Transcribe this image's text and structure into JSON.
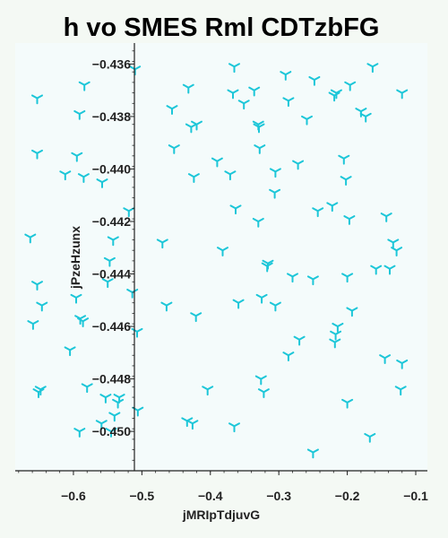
{
  "chart_data": {
    "type": "scatter",
    "title": "h vo SMES Rml CDTzbFG",
    "xlabel": "jMRIpTdjuvG",
    "ylabel": "jPzeHzunx",
    "xlim": [
      -0.685,
      -0.083
    ],
    "ylim": [
      -0.4515,
      -0.4352
    ],
    "x_ticks": [
      -0.6,
      -0.5,
      -0.4,
      -0.3,
      -0.2,
      -0.1
    ],
    "x_tick_labels": [
      "−0.6",
      "−0.5",
      "−0.4",
      "−0.3",
      "−0.2",
      "−0.1"
    ],
    "y_ticks": [
      -0.436,
      -0.438,
      -0.44,
      -0.442,
      -0.444,
      -0.446,
      -0.448,
      -0.45
    ],
    "y_tick_labels": [
      "−0.436",
      "−0.438",
      "−0.440",
      "−0.442",
      "−0.444",
      "−0.446",
      "−0.448",
      "−0.450"
    ],
    "grid": false,
    "marker": "tri",
    "colors": {
      "background": "#f4f9f4",
      "plot_background": "#f4fbfb",
      "marker": "#1cc6d8",
      "axis": "#222222"
    },
    "series": [
      {
        "x": [
          -0.51,
          -0.365,
          -0.163,
          -0.29,
          -0.248,
          -0.653,
          -0.584,
          -0.432,
          -0.367,
          -0.336,
          -0.196,
          -0.216,
          -0.219,
          -0.12,
          -0.591,
          -0.456,
          -0.351,
          -0.286,
          -0.18,
          -0.259,
          -0.42,
          -0.173,
          -0.428,
          -0.33,
          -0.329,
          -0.453,
          -0.328,
          -0.39,
          -0.653,
          -0.595,
          -0.205,
          -0.272,
          -0.612,
          -0.585,
          -0.424,
          -0.371,
          -0.305,
          -0.558,
          -0.202,
          -0.306,
          -0.519,
          -0.363,
          -0.243,
          -0.222,
          -0.143,
          -0.197,
          -0.33,
          -0.663,
          -0.542,
          -0.133,
          -0.47,
          -0.382,
          -0.128,
          -0.547,
          -0.316,
          -0.317,
          -0.158,
          -0.138,
          -0.28,
          -0.25,
          -0.2,
          -0.653,
          -0.55,
          -0.596,
          -0.514,
          -0.325,
          -0.305,
          -0.646,
          -0.464,
          -0.59,
          -0.421,
          -0.359,
          -0.193,
          -0.659,
          -0.586,
          -0.214,
          -0.507,
          -0.27,
          -0.217,
          -0.218,
          -0.605,
          -0.286,
          -0.145,
          -0.12,
          -0.58,
          -0.326,
          -0.404,
          -0.648,
          -0.651,
          -0.553,
          -0.322,
          -0.533,
          -0.535,
          -0.2,
          -0.122,
          -0.54,
          -0.506,
          -0.434,
          -0.426,
          -0.559,
          -0.365,
          -0.591,
          -0.545,
          -0.167,
          -0.25
        ],
        "y": [
          -0.4362,
          -0.4361,
          -0.4361,
          -0.4364,
          -0.4366,
          -0.4373,
          -0.4368,
          -0.4369,
          -0.4371,
          -0.437,
          -0.4368,
          -0.4371,
          -0.4372,
          -0.4371,
          -0.4379,
          -0.4377,
          -0.4375,
          -0.4374,
          -0.4378,
          -0.4381,
          -0.4383,
          -0.438,
          -0.4384,
          -0.4383,
          -0.4384,
          -0.4392,
          -0.4392,
          -0.4397,
          -0.4394,
          -0.4395,
          -0.4396,
          -0.4398,
          -0.4402,
          -0.4403,
          -0.4403,
          -0.4402,
          -0.4401,
          -0.4405,
          -0.4404,
          -0.4409,
          -0.4416,
          -0.4415,
          -0.4416,
          -0.4414,
          -0.4418,
          -0.4419,
          -0.442,
          -0.4426,
          -0.4427,
          -0.4428,
          -0.4428,
          -0.4431,
          -0.4431,
          -0.4435,
          -0.4436,
          -0.4437,
          -0.4438,
          -0.4438,
          -0.4441,
          -0.4442,
          -0.4441,
          -0.4444,
          -0.4443,
          -0.4449,
          -0.4447,
          -0.4449,
          -0.4452,
          -0.4452,
          -0.4452,
          -0.4457,
          -0.4456,
          -0.4451,
          -0.4454,
          -0.4459,
          -0.4458,
          -0.446,
          -0.4462,
          -0.4465,
          -0.4463,
          -0.4466,
          -0.4469,
          -0.4471,
          -0.4472,
          -0.4474,
          -0.4483,
          -0.448,
          -0.4484,
          -0.4484,
          -0.4485,
          -0.4487,
          -0.4485,
          -0.4487,
          -0.4489,
          -0.4489,
          -0.4484,
          -0.4494,
          -0.4492,
          -0.4496,
          -0.4497,
          -0.4497,
          -0.4498,
          -0.45,
          -0.45,
          -0.4502,
          -0.4508
        ]
      }
    ]
  }
}
